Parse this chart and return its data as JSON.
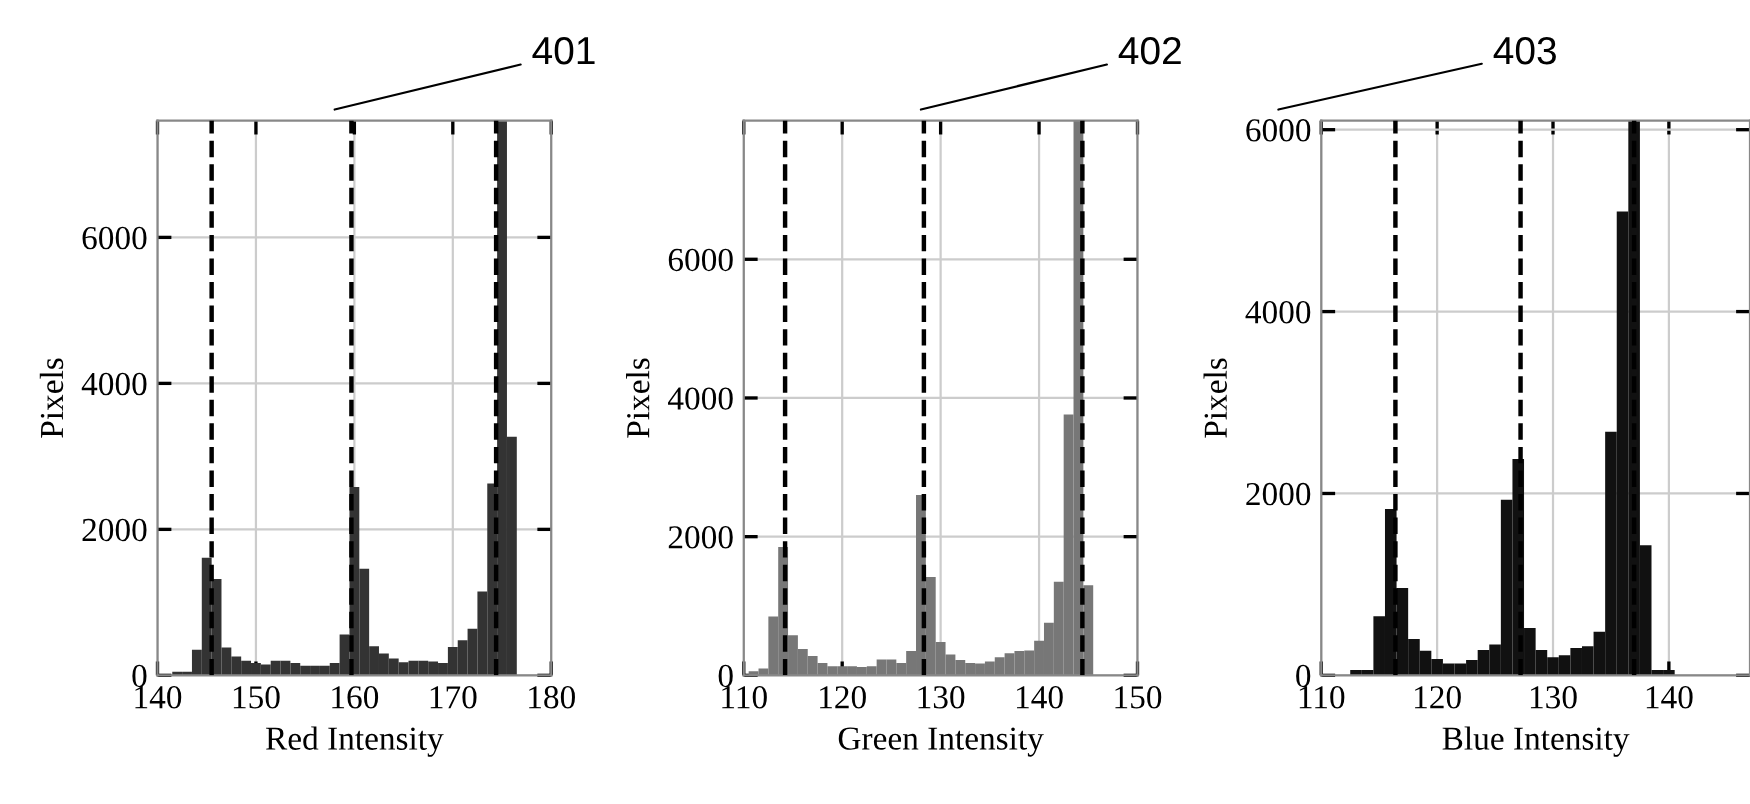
{
  "chart_data": [
    {
      "type": "histogram",
      "annotations": [
        "401"
      ],
      "xlabel": "Red Intensity",
      "ylabel": "Pixels",
      "color": "#333333",
      "grid": true,
      "bins": [
        141.5,
        142.5,
        143.5,
        144.5,
        145.5,
        146.5,
        147.5,
        148.5,
        149.5,
        150.5,
        151.5,
        152.5,
        153.5,
        154.5,
        155.5,
        156.5,
        157.5,
        158.5,
        159.5,
        160.5,
        161.5,
        162.5,
        163.5,
        164.5,
        165.5,
        166.5,
        167.5,
        168.5,
        169.5,
        170.5,
        171.5,
        172.5,
        173.5,
        174.5,
        175.5,
        176.5
      ],
      "values": [
        50,
        50,
        350,
        1610,
        1320,
        380,
        260,
        200,
        170,
        150,
        200,
        200,
        170,
        130,
        130,
        130,
        170,
        560,
        2580,
        1460,
        400,
        300,
        230,
        180,
        200,
        200,
        190,
        170,
        390,
        480,
        640,
        1150,
        2630,
        7600,
        3270
      ],
      "xlim": [
        140,
        180
      ],
      "xticks": [
        140,
        150,
        160,
        170,
        180
      ],
      "ylim": [
        0,
        7600
      ],
      "yticks": [
        0,
        2000,
        4000,
        6000
      ],
      "ref_lines": [
        {
          "axis": "x",
          "value": 145.5,
          "line_style": "dashed",
          "color": "#000000"
        },
        {
          "axis": "x",
          "value": 159.7,
          "line_style": "dashed",
          "color": "#000000"
        },
        {
          "axis": "x",
          "value": 174.4,
          "line_style": "dashed",
          "color": "#000000"
        }
      ]
    },
    {
      "type": "histogram",
      "annotations": [
        "402"
      ],
      "xlabel": "Green Intensity",
      "ylabel": "Pixels",
      "color": "#777777",
      "grid": true,
      "bins": [
        110.5,
        111.5,
        112.5,
        113.5,
        114.5,
        115.5,
        116.5,
        117.5,
        118.5,
        119.5,
        120.5,
        121.5,
        122.5,
        123.5,
        124.5,
        125.5,
        126.5,
        127.5,
        128.5,
        129.5,
        130.5,
        131.5,
        132.5,
        133.5,
        134.5,
        135.5,
        136.5,
        137.5,
        138.5,
        139.5,
        140.5,
        141.5,
        142.5,
        143.5,
        144.5,
        145.5
      ],
      "values": [
        60,
        100,
        850,
        1850,
        580,
        380,
        280,
        180,
        130,
        130,
        130,
        120,
        130,
        230,
        230,
        180,
        350,
        2600,
        1420,
        480,
        300,
        220,
        180,
        170,
        200,
        260,
        320,
        350,
        360,
        500,
        760,
        1350,
        3760,
        8000,
        1300
      ],
      "xlim": [
        110,
        150
      ],
      "xticks": [
        110,
        120,
        130,
        140,
        150
      ],
      "ylim": [
        0,
        8000
      ],
      "yticks": [
        0,
        2000,
        4000,
        6000
      ],
      "ref_lines": [
        {
          "axis": "x",
          "value": 114.2,
          "line_style": "dashed",
          "color": "#000000"
        },
        {
          "axis": "x",
          "value": 128.3,
          "line_style": "dashed",
          "color": "#000000"
        },
        {
          "axis": "x",
          "value": 144.4,
          "line_style": "dashed",
          "color": "#000000"
        }
      ]
    },
    {
      "type": "histogram",
      "annotations": [
        "403"
      ],
      "xlabel": "Blue Intensity",
      "ylabel": "Pixels",
      "color": "#111111",
      "grid": true,
      "bins": [
        112.5,
        113.5,
        114.5,
        115.5,
        116.5,
        117.5,
        118.5,
        119.5,
        120.5,
        121.5,
        122.5,
        123.5,
        124.5,
        125.5,
        126.5,
        127.5,
        128.5,
        129.5,
        130.5,
        131.5,
        132.5,
        133.5,
        134.5,
        135.5,
        136.5,
        137.5,
        138.5,
        139.5,
        140.5
      ],
      "values": [
        60,
        60,
        650,
        1830,
        960,
        400,
        270,
        180,
        130,
        130,
        170,
        280,
        340,
        1930,
        2380,
        520,
        280,
        200,
        220,
        300,
        320,
        480,
        2680,
        5100,
        6100,
        1430,
        60,
        60
      ],
      "xlim": [
        110,
        147
      ],
      "xticks": [
        110,
        120,
        130,
        140
      ],
      "ylim": [
        0,
        6100
      ],
      "yticks": [
        0,
        2000,
        4000,
        6000
      ],
      "ref_lines": [
        {
          "axis": "x",
          "value": 116.4,
          "line_style": "dashed",
          "color": "#000000"
        },
        {
          "axis": "x",
          "value": 127.2,
          "line_style": "dashed",
          "color": "#000000"
        },
        {
          "axis": "x",
          "value": 137.0,
          "line_style": "dashed",
          "color": "#000000"
        }
      ]
    }
  ]
}
